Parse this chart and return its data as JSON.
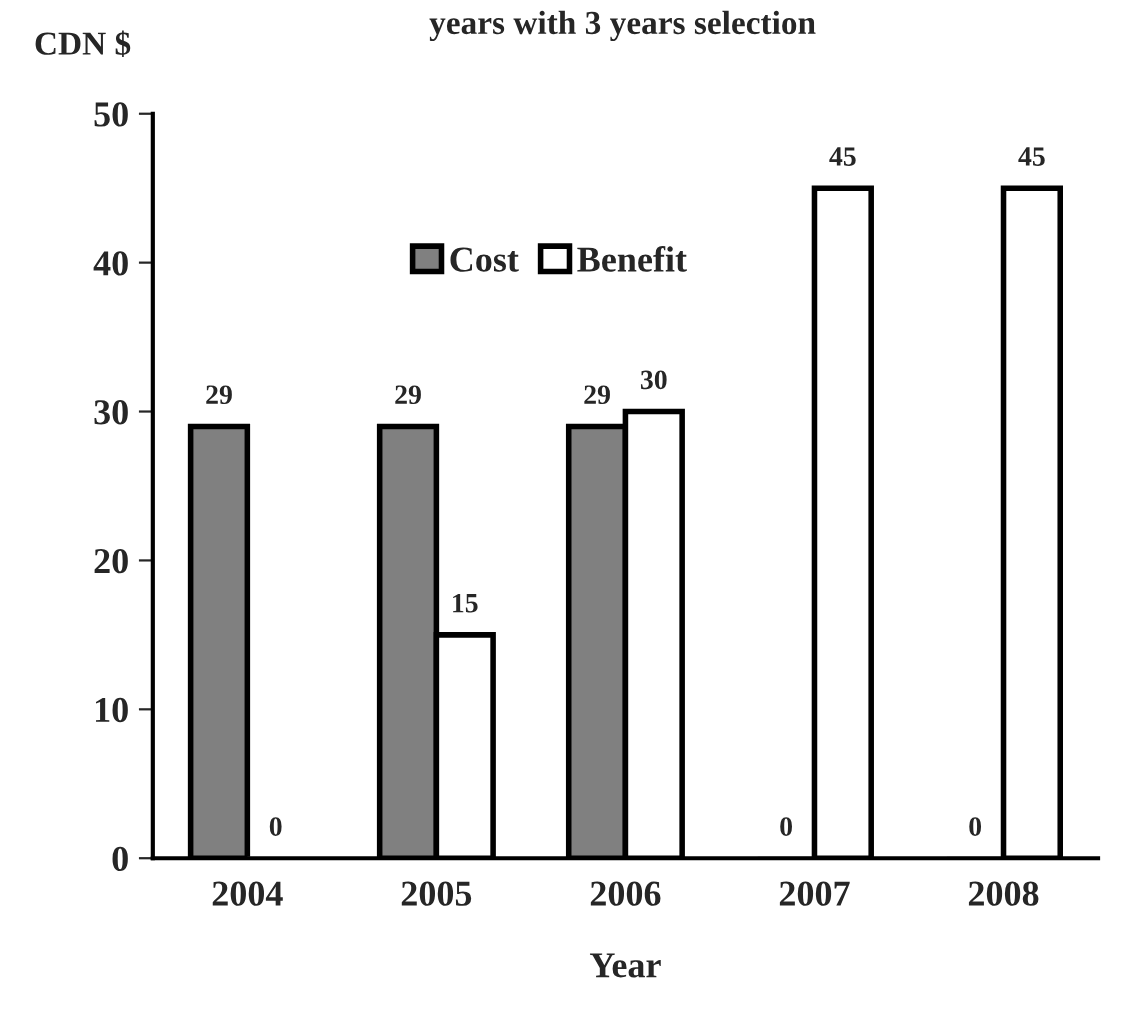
{
  "chart_data": {
    "type": "bar",
    "title": "years with 3 years selection",
    "ylabel": "CDN $",
    "xlabel": "Year",
    "categories": [
      "2004",
      "2005",
      "2006",
      "2007",
      "2008"
    ],
    "series": [
      {
        "name": "Cost",
        "color": "#808080",
        "values": [
          29,
          29,
          29,
          0,
          0
        ]
      },
      {
        "name": "Benefit",
        "color": "#ffffff",
        "values": [
          0,
          15,
          30,
          45,
          45
        ]
      }
    ],
    "ylim": [
      0,
      50
    ],
    "yticks": [
      0,
      10,
      20,
      30,
      40,
      50
    ],
    "data_labels": true,
    "legend": "top",
    "grid": false
  }
}
